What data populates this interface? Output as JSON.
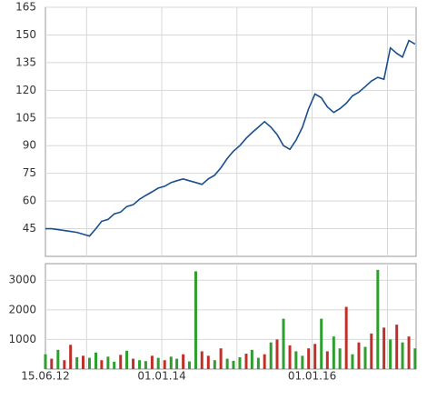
{
  "chart_data": [
    {
      "type": "line",
      "x": [
        "2012-06-15",
        "2012-07-15",
        "2012-08-15",
        "2012-09-15",
        "2012-10-15",
        "2012-11-15",
        "2012-12-15",
        "2013-01-15",
        "2013-02-15",
        "2013-03-15",
        "2013-04-15",
        "2013-05-15",
        "2013-06-15",
        "2013-07-15",
        "2013-08-15",
        "2013-09-15",
        "2013-10-15",
        "2013-11-15",
        "2013-12-15",
        "2014-01-15",
        "2014-02-15",
        "2014-03-15",
        "2014-04-15",
        "2014-05-15",
        "2014-06-15",
        "2014-07-15",
        "2014-08-15",
        "2014-09-15",
        "2014-10-15",
        "2014-11-15",
        "2014-12-15",
        "2015-01-15",
        "2015-02-15",
        "2015-03-15",
        "2015-04-15",
        "2015-05-15",
        "2015-06-15",
        "2015-07-15",
        "2015-08-15",
        "2015-09-15",
        "2015-10-15",
        "2015-11-15",
        "2015-12-15",
        "2016-01-15",
        "2016-02-15",
        "2016-03-15",
        "2016-04-15",
        "2016-05-15",
        "2016-06-15",
        "2016-07-15",
        "2016-08-15",
        "2016-09-15",
        "2016-10-15",
        "2016-11-15",
        "2016-12-15",
        "2017-01-15",
        "2017-02-15",
        "2017-03-15",
        "2017-04-15",
        "2017-05-15"
      ],
      "values": [
        45,
        45,
        44.5,
        44,
        43.5,
        43,
        42,
        41,
        45,
        49,
        50,
        53,
        54,
        57,
        58,
        61,
        63,
        65,
        67,
        68,
        70,
        71,
        72,
        71,
        70,
        69,
        72,
        74,
        78,
        83,
        87,
        90,
        94,
        97,
        100,
        103,
        100,
        96,
        90,
        88,
        93,
        100,
        110,
        118,
        116,
        111,
        108,
        110,
        113,
        117,
        119,
        122,
        125,
        127,
        126,
        143,
        140,
        138,
        147,
        145
      ],
      "color": "#1a4e8f",
      "ylim": [
        30,
        165
      ],
      "yticks": [
        45,
        60,
        75,
        90,
        105,
        120,
        135,
        150,
        165
      ],
      "xlim": [
        "2012-06-15",
        "2017-05-20"
      ],
      "xticks": [
        {
          "value": "2013-01-01",
          "label": null
        },
        {
          "value": "2014-01-01",
          "label": null
        },
        {
          "value": "2015-01-01",
          "label": null
        },
        {
          "value": "2016-01-01",
          "label": null
        },
        {
          "value": "2017-01-01",
          "label": null
        }
      ],
      "grid": true
    },
    {
      "type": "bar",
      "x": [
        "2012-06-15",
        "2012-07-15",
        "2012-08-15",
        "2012-09-15",
        "2012-10-15",
        "2012-11-15",
        "2012-12-15",
        "2013-01-15",
        "2013-02-15",
        "2013-03-15",
        "2013-04-15",
        "2013-05-15",
        "2013-06-15",
        "2013-07-15",
        "2013-08-15",
        "2013-09-15",
        "2013-10-15",
        "2013-11-15",
        "2013-12-15",
        "2014-01-15",
        "2014-02-15",
        "2014-03-15",
        "2014-04-15",
        "2014-05-15",
        "2014-06-15",
        "2014-07-15",
        "2014-08-15",
        "2014-09-15",
        "2014-10-15",
        "2014-11-15",
        "2014-12-15",
        "2015-01-15",
        "2015-02-15",
        "2015-03-15",
        "2015-04-15",
        "2015-05-15",
        "2015-06-15",
        "2015-07-15",
        "2015-08-15",
        "2015-09-15",
        "2015-10-15",
        "2015-11-15",
        "2015-12-15",
        "2016-01-15",
        "2016-02-15",
        "2016-03-15",
        "2016-04-15",
        "2016-05-15",
        "2016-06-15",
        "2016-07-15",
        "2016-08-15",
        "2016-09-15",
        "2016-10-15",
        "2016-11-15",
        "2016-12-15",
        "2017-01-15",
        "2017-02-15",
        "2017-03-15",
        "2017-04-15",
        "2017-05-15"
      ],
      "values": [
        500,
        350,
        650,
        300,
        820,
        400,
        450,
        380,
        560,
        300,
        420,
        250,
        480,
        620,
        350,
        300,
        270,
        450,
        380,
        300,
        420,
        350,
        500,
        260,
        3300,
        600,
        450,
        300,
        700,
        350,
        280,
        400,
        520,
        650,
        380,
        500,
        900,
        1000,
        1700,
        800,
        600,
        450,
        700,
        850,
        1700,
        600,
        1100,
        700,
        2100,
        500,
        900,
        750,
        1200,
        3350,
        1400,
        1000,
        1500,
        900,
        1100,
        700
      ],
      "colors": [
        "#2e9e2e",
        "#c0302a",
        "#2e9e2e",
        "#c0302a",
        "#c0302a",
        "#2e9e2e",
        "#c0302a",
        "#2e9e2e",
        "#2e9e2e",
        "#c0302a",
        "#2e9e2e",
        "#2e9e2e",
        "#c0302a",
        "#2e9e2e",
        "#c0302a",
        "#2e9e2e",
        "#2e9e2e",
        "#c0302a",
        "#2e9e2e",
        "#c0302a",
        "#2e9e2e",
        "#2e9e2e",
        "#c0302a",
        "#2e9e2e",
        "#2e9e2e",
        "#c0302a",
        "#c0302a",
        "#2e9e2e",
        "#c0302a",
        "#2e9e2e",
        "#2e9e2e",
        "#2e9e2e",
        "#c0302a",
        "#2e9e2e",
        "#2e9e2e",
        "#c0302a",
        "#2e9e2e",
        "#c0302a",
        "#2e9e2e",
        "#c0302a",
        "#2e9e2e",
        "#2e9e2e",
        "#c0302a",
        "#c0302a",
        "#2e9e2e",
        "#c0302a",
        "#2e9e2e",
        "#2e9e2e",
        "#c0302a",
        "#2e9e2e",
        "#c0302a",
        "#2e9e2e",
        "#c0302a",
        "#2e9e2e",
        "#c0302a",
        "#2e9e2e",
        "#c0302a",
        "#2e9e2e",
        "#c0302a",
        "#2e9e2e"
      ],
      "ylim": [
        0,
        3560
      ],
      "yticks": [
        1000,
        2000,
        3000
      ],
      "xlim": [
        "2012-06-15",
        "2017-05-20"
      ],
      "xticks": [
        {
          "value": "2012-06-15",
          "label": "15.06.12"
        },
        {
          "value": "2013-01-01",
          "label": null
        },
        {
          "value": "2014-01-01",
          "label": "01.01.14"
        },
        {
          "value": "2015-01-01",
          "label": null
        },
        {
          "value": "2016-01-01",
          "label": "01.01.16"
        },
        {
          "value": "2017-01-01",
          "label": null
        }
      ],
      "grid": true
    }
  ]
}
